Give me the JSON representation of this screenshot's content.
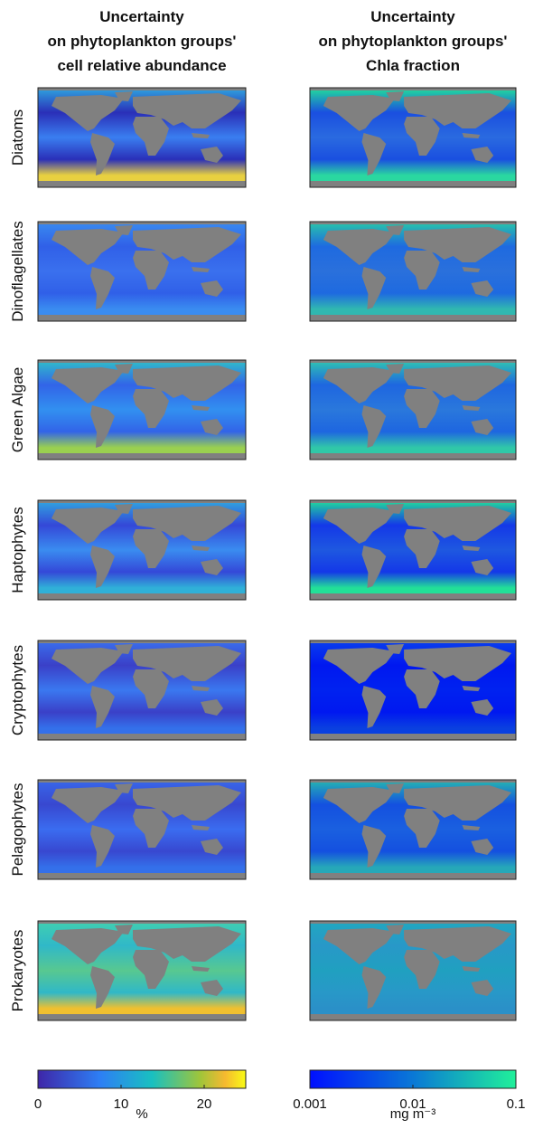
{
  "columns": [
    {
      "title_lines": [
        "Uncertainty",
        "on phytoplankton groups'",
        "cell relative abundance"
      ],
      "colorbar": {
        "scale": "linear",
        "lim": [
          0,
          25
        ],
        "ticks": [
          0,
          10,
          20
        ],
        "unit": "%"
      }
    },
    {
      "title_lines": [
        "Uncertainty",
        "on phytoplankton groups'",
        "Chla fraction"
      ],
      "colorbar": {
        "scale": "log",
        "lim": [
          0.001,
          0.1
        ],
        "ticks": [
          0.001,
          0.01,
          0.1
        ],
        "unit": "mg m⁻³"
      }
    }
  ],
  "rows": [
    "Diatoms",
    "Dinoflagellates",
    "Green Algae",
    "Haptophytes",
    "Cryptophytes",
    "Pelagophytes",
    "Prokaryotes"
  ]
}
